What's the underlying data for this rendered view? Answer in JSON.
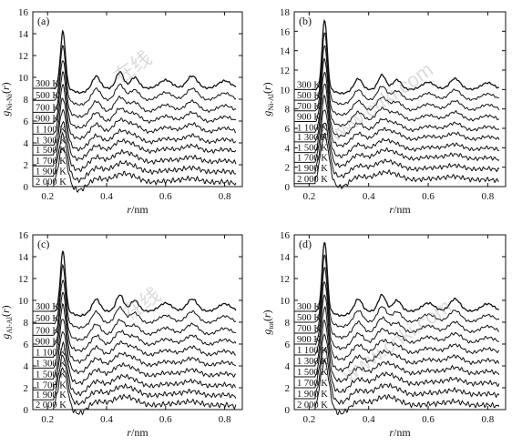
{
  "watermark": [
    "在线",
    "www.cnki.com",
    "在线",
    "www.cnki.com"
  ],
  "chart_data": [
    {
      "type": "line",
      "panel_label": "(a)",
      "xlabel_italic": "r",
      "xlabel_unit": "/nm",
      "ylabel_main": "g",
      "ylabel_sub": "Ni-Ni",
      "ylabel_arg": "(r)",
      "xlim": [
        0.15,
        0.86
      ],
      "ylim": [
        0,
        16
      ],
      "xticks": [
        0.2,
        0.4,
        0.6,
        0.8
      ],
      "yticks": [
        0,
        2,
        4,
        6,
        8,
        10,
        12,
        14,
        16
      ],
      "grid": false,
      "peak_height": 5.2,
      "curve_labels": [
        "300 K",
        "500 K",
        "700 K",
        "900 K",
        "1 100 K",
        "1 300 K",
        "1 500 K",
        "1 700 K",
        "1 900 K",
        "2 000 K"
      ],
      "offsets": [
        9.0,
        7.9,
        6.8,
        5.8,
        4.8,
        3.8,
        2.9,
        1.9,
        0.95,
        0.0
      ]
    },
    {
      "type": "line",
      "panel_label": "(b)",
      "xlabel_italic": "r",
      "xlabel_unit": "/nm",
      "ylabel_main": "g",
      "ylabel_sub": "Ni-Al",
      "ylabel_arg": "(r)",
      "xlim": [
        0.15,
        0.86
      ],
      "ylim": [
        0,
        18
      ],
      "xticks": [
        0.2,
        0.4,
        0.6,
        0.8
      ],
      "yticks": [
        0,
        2,
        4,
        6,
        8,
        10,
        12,
        14,
        16,
        18
      ],
      "grid": false,
      "peak_height": 7.2,
      "curve_labels": [
        "300 K",
        "500 K",
        "700 K",
        "900 K",
        "1 100 K",
        "1 300 K",
        "1 500 K",
        "1 700 K",
        "1 900 K",
        "2 000 K"
      ],
      "offsets": [
        10.0,
        8.9,
        7.8,
        6.7,
        5.6,
        4.6,
        3.5,
        2.5,
        1.4,
        0.3
      ]
    },
    {
      "type": "line",
      "panel_label": "(c)",
      "xlabel_italic": "r",
      "xlabel_unit": "/nm",
      "ylabel_main": "g",
      "ylabel_sub": "Al-Al",
      "ylabel_arg": "(r)",
      "xlim": [
        0.15,
        0.86
      ],
      "ylim": [
        0,
        16
      ],
      "xticks": [
        0.2,
        0.4,
        0.6,
        0.8
      ],
      "yticks": [
        0,
        2,
        4,
        6,
        8,
        10,
        12,
        14,
        16
      ],
      "grid": false,
      "peak_height": 5.5,
      "curve_labels": [
        "300 K",
        "500 K",
        "700 K",
        "900 K",
        "1 100 K",
        "1 300 K",
        "1 500 K",
        "1 700 K",
        "1 900 K",
        "2 000 K"
      ],
      "offsets": [
        9.0,
        7.9,
        6.8,
        5.8,
        4.8,
        3.8,
        2.8,
        1.8,
        0.9,
        0.0
      ]
    },
    {
      "type": "line",
      "panel_label": "(d)",
      "xlabel_italic": "r",
      "xlabel_unit": "/nm",
      "ylabel_main": "g",
      "ylabel_sub": "tot",
      "ylabel_arg": "(r)",
      "xlim": [
        0.15,
        0.86
      ],
      "ylim": [
        0,
        16
      ],
      "xticks": [
        0.2,
        0.4,
        0.6,
        0.8
      ],
      "yticks": [
        0,
        2,
        4,
        6,
        8,
        10,
        12,
        14,
        16
      ],
      "grid": false,
      "peak_height": 6.4,
      "curve_labels": [
        "300 K",
        "500 K",
        "700 K",
        "900 K",
        "1 100 K",
        "1 300 K",
        "1 500 K",
        "1 700 K",
        "1 900 K",
        "2 000 K"
      ],
      "offsets": [
        9.0,
        8.0,
        7.0,
        6.0,
        5.0,
        4.0,
        3.0,
        2.0,
        1.0,
        0.0
      ]
    }
  ]
}
